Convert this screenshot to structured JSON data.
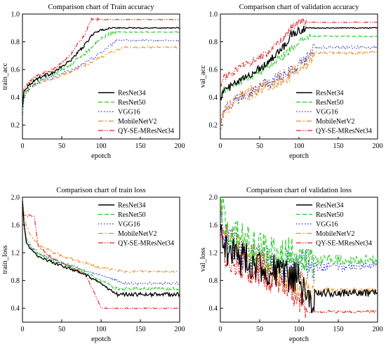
{
  "legend_names": [
    "ResNet34",
    "ResNet50",
    "VGG16",
    "MobileNetV2",
    "QY-SE-MResNet34"
  ],
  "series_colors": [
    "#000000",
    "#22cc22",
    "#2b2bd6",
    "#ee8a1c",
    "#e01f1f"
  ],
  "chart_data": [
    {
      "type": "line",
      "title": "Comparison chart of Train accuracy",
      "xlabel": "epotch",
      "ylabel": "train_acc",
      "xlim": [
        0,
        200
      ],
      "ylim": [
        0.1,
        1.0
      ],
      "xticks": [
        "0",
        "50",
        "100",
        "150",
        "200"
      ],
      "yticks": [
        "0.2",
        "0.4",
        "0.6",
        "0.8",
        "1.0"
      ],
      "legend_position": "bottom-right",
      "series": [
        {
          "name": "ResNet34",
          "x": [
            0,
            2,
            10,
            20,
            40,
            60,
            80,
            90,
            100,
            110,
            200
          ],
          "y": [
            0.33,
            0.45,
            0.5,
            0.54,
            0.58,
            0.66,
            0.78,
            0.86,
            0.88,
            0.9,
            0.9
          ]
        },
        {
          "name": "ResNet50",
          "x": [
            0,
            2,
            10,
            20,
            40,
            60,
            80,
            100,
            110,
            120,
            200
          ],
          "y": [
            0.3,
            0.42,
            0.48,
            0.52,
            0.57,
            0.63,
            0.72,
            0.82,
            0.86,
            0.87,
            0.87
          ]
        },
        {
          "name": "VGG16",
          "x": [
            0,
            2,
            10,
            20,
            40,
            60,
            80,
            100,
            120,
            200
          ],
          "y": [
            0.25,
            0.4,
            0.47,
            0.51,
            0.55,
            0.59,
            0.65,
            0.72,
            0.81,
            0.81
          ]
        },
        {
          "name": "MobileNetV2",
          "x": [
            0,
            2,
            10,
            20,
            40,
            60,
            80,
            100,
            130,
            200
          ],
          "y": [
            0.3,
            0.42,
            0.47,
            0.5,
            0.54,
            0.58,
            0.63,
            0.69,
            0.76,
            0.76
          ]
        },
        {
          "name": "QY-SE-MResNet34",
          "x": [
            0,
            2,
            10,
            20,
            40,
            60,
            80,
            88,
            100,
            200
          ],
          "y": [
            0.33,
            0.46,
            0.52,
            0.56,
            0.6,
            0.7,
            0.86,
            0.96,
            0.96,
            0.96
          ]
        }
      ]
    },
    {
      "type": "line",
      "title": "Comparison chart of validation accuracy",
      "xlabel": "epotch",
      "ylabel": "val_acc",
      "xlim": [
        0,
        200
      ],
      "ylim": [
        0.1,
        1.0
      ],
      "xticks": [
        "0",
        "50",
        "100",
        "150",
        "200"
      ],
      "yticks": [
        "0.2",
        "0.4",
        "0.6",
        "0.8",
        "1.0"
      ],
      "legend_position": "bottom-right",
      "series": [
        {
          "name": "ResNet34",
          "x": [
            0,
            5,
            20,
            40,
            60,
            80,
            90,
            100,
            110,
            200
          ],
          "y": [
            0.4,
            0.45,
            0.5,
            0.57,
            0.65,
            0.76,
            0.85,
            0.88,
            0.9,
            0.9
          ]
        },
        {
          "name": "ResNet50",
          "x": [
            0,
            5,
            20,
            40,
            60,
            80,
            100,
            115,
            200
          ],
          "y": [
            0.4,
            0.45,
            0.5,
            0.55,
            0.62,
            0.7,
            0.8,
            0.84,
            0.84
          ]
        },
        {
          "name": "VGG16",
          "x": [
            0,
            5,
            20,
            40,
            60,
            80,
            100,
            120,
            200
          ],
          "y": [
            0.22,
            0.32,
            0.38,
            0.45,
            0.5,
            0.56,
            0.62,
            0.76,
            0.76
          ]
        },
        {
          "name": "MobileNetV2",
          "x": [
            0,
            5,
            20,
            40,
            60,
            80,
            100,
            120,
            200
          ],
          "y": [
            0.2,
            0.3,
            0.38,
            0.44,
            0.48,
            0.54,
            0.6,
            0.72,
            0.72
          ]
        },
        {
          "name": "QY-SE-MResNet34",
          "x": [
            0,
            5,
            20,
            40,
            60,
            80,
            90,
            100,
            110,
            200
          ],
          "y": [
            0.5,
            0.54,
            0.6,
            0.66,
            0.72,
            0.82,
            0.9,
            0.94,
            0.94,
            0.94
          ]
        }
      ]
    },
    {
      "type": "line",
      "title": "Comparison chart of train loss",
      "xlabel": "epotch",
      "ylabel": "train_loss",
      "xlim": [
        0,
        200
      ],
      "ylim": [
        0.2,
        2.0
      ],
      "xticks": [
        "0",
        "50",
        "100",
        "150",
        "200"
      ],
      "yticks": [
        "0.4",
        "0.8",
        "1.2",
        "1.6",
        "2.0"
      ],
      "legend_position": "top-right",
      "series": [
        {
          "name": "ResNet34",
          "x": [
            0,
            2,
            5,
            10,
            20,
            40,
            60,
            80,
            100,
            120,
            200
          ],
          "y": [
            1.95,
            1.6,
            1.35,
            1.25,
            1.15,
            1.05,
            0.97,
            0.88,
            0.75,
            0.6,
            0.6
          ]
        },
        {
          "name": "ResNet50",
          "x": [
            0,
            2,
            5,
            10,
            20,
            40,
            60,
            80,
            100,
            120,
            200
          ],
          "y": [
            1.95,
            1.6,
            1.38,
            1.28,
            1.18,
            1.08,
            1.0,
            0.92,
            0.8,
            0.68,
            0.68
          ]
        },
        {
          "name": "VGG16",
          "x": [
            0,
            2,
            5,
            10,
            20,
            40,
            60,
            80,
            100,
            130,
            200
          ],
          "y": [
            1.95,
            1.62,
            1.4,
            1.3,
            1.2,
            1.1,
            1.02,
            0.95,
            0.87,
            0.76,
            0.76
          ]
        },
        {
          "name": "MobileNetV2",
          "x": [
            0,
            2,
            5,
            10,
            20,
            40,
            60,
            80,
            100,
            130,
            200
          ],
          "y": [
            1.95,
            1.75,
            1.6,
            1.45,
            1.32,
            1.2,
            1.12,
            1.05,
            0.98,
            0.93,
            0.93
          ]
        },
        {
          "name": "QY-SE-MResNet34",
          "x": [
            0,
            2,
            5,
            15,
            20,
            40,
            60,
            80,
            90,
            100,
            200
          ],
          "y": [
            1.95,
            1.75,
            1.73,
            1.73,
            1.3,
            1.1,
            1.0,
            0.9,
            0.65,
            0.4,
            0.4
          ]
        }
      ]
    },
    {
      "type": "line",
      "title": "Comparison chart of validation loss",
      "xlabel": "epotch",
      "ylabel": "val_loss",
      "xlim": [
        0,
        200
      ],
      "ylim": [
        0.2,
        2.0
      ],
      "xticks": [
        "0",
        "50",
        "100",
        "150",
        "200"
      ],
      "yticks": [
        "0.4",
        "0.8",
        "1.2",
        "1.6",
        "2.0"
      ],
      "legend_position": "top-right",
      "series": [
        {
          "name": "ResNet34",
          "x": [
            0,
            5,
            20,
            40,
            60,
            80,
            100,
            110,
            115,
            120,
            200
          ],
          "y": [
            1.5,
            1.3,
            1.15,
            1.05,
            0.95,
            0.88,
            0.8,
            0.55,
            0.38,
            0.62,
            0.62
          ]
        },
        {
          "name": "ResNet50",
          "x": [
            0,
            5,
            20,
            40,
            60,
            80,
            100,
            120,
            200
          ],
          "y": [
            1.95,
            1.6,
            1.4,
            1.25,
            1.2,
            1.15,
            1.12,
            1.1,
            1.1
          ]
        },
        {
          "name": "VGG16",
          "x": [
            0,
            5,
            20,
            40,
            60,
            80,
            100,
            120,
            200
          ],
          "y": [
            1.7,
            1.4,
            1.25,
            1.1,
            1.05,
            1.0,
            1.0,
            1.0,
            1.0
          ]
        },
        {
          "name": "MobileNetV2",
          "x": [
            0,
            5,
            20,
            40,
            60,
            80,
            100,
            120,
            200
          ],
          "y": [
            1.9,
            1.5,
            1.3,
            1.15,
            1.0,
            0.88,
            0.75,
            0.66,
            0.66
          ]
        },
        {
          "name": "QY-SE-MResNet34",
          "x": [
            0,
            5,
            20,
            40,
            60,
            80,
            100,
            110,
            200
          ],
          "y": [
            1.4,
            1.2,
            1.05,
            0.95,
            0.85,
            0.75,
            0.55,
            0.35,
            0.35
          ]
        }
      ]
    }
  ]
}
